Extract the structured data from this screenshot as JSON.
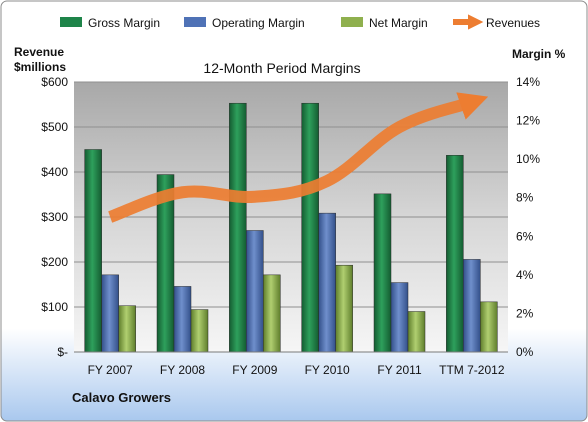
{
  "chart_data": {
    "type": "bar",
    "title": "12-Month Period Margins",
    "company": "Calavo Growers",
    "y_left_label_line1": "Revenue",
    "y_left_label_line2": "$millions",
    "y_right_label": "Margin %",
    "categories": [
      "FY 2007",
      "FY 2008",
      "FY 2009",
      "FY 2010",
      "FY 2011",
      "TTM 7-2012"
    ],
    "ylim_left": [
      0,
      600
    ],
    "left_ticks": [
      0,
      100,
      200,
      300,
      400,
      500,
      600
    ],
    "left_tick_labels": [
      "$-",
      "$100",
      "$200",
      "$300",
      "$400",
      "$500",
      "$600"
    ],
    "ylim_right": [
      0,
      14
    ],
    "right_ticks": [
      0,
      2,
      4,
      6,
      8,
      10,
      12,
      14
    ],
    "right_tick_labels": [
      "0%",
      "2%",
      "4%",
      "6%",
      "8%",
      "10%",
      "12%",
      "14%"
    ],
    "series": [
      {
        "name": "Gross Margin",
        "axis": "right",
        "color": "#1e8449",
        "values": [
          10.5,
          9.2,
          12.9,
          12.9,
          8.2,
          10.2
        ]
      },
      {
        "name": "Operating Margin",
        "axis": "right",
        "color": "#4f72b6",
        "values": [
          4.0,
          3.4,
          6.3,
          7.2,
          3.6,
          4.8
        ]
      },
      {
        "name": "Net Margin",
        "axis": "right",
        "color": "#8fb04e",
        "values": [
          2.4,
          2.2,
          4.0,
          4.5,
          2.1,
          2.6
        ]
      },
      {
        "name": "Revenues",
        "axis": "left",
        "type": "line",
        "color": "#ed7d31",
        "values": [
          300,
          355,
          345,
          380,
          500,
          555
        ]
      }
    ],
    "grid": true,
    "legend_position": "top"
  }
}
